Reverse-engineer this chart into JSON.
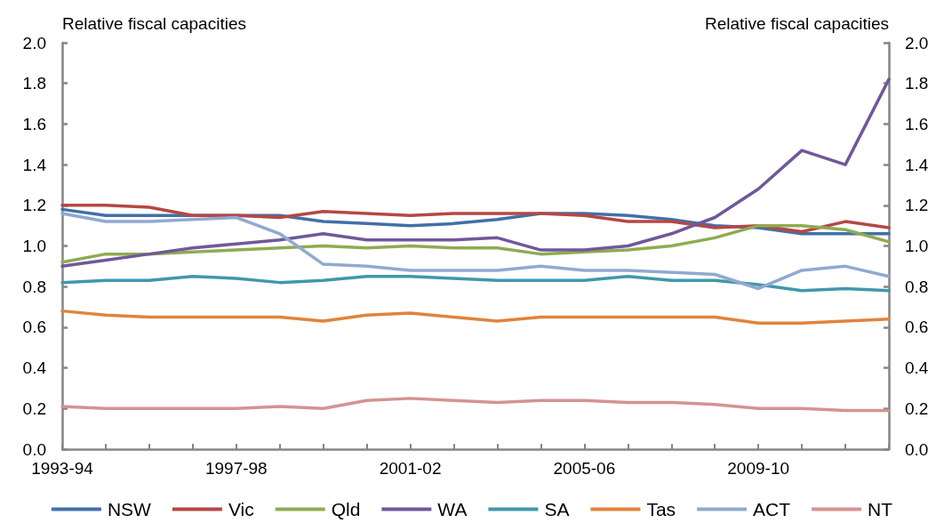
{
  "chart_data": {
    "type": "line",
    "ylabel": "Relative fiscal capacities",
    "y2label": "Relative fiscal capacities",
    "categories": [
      "1993-94",
      null,
      null,
      null,
      "1997-98",
      null,
      null,
      null,
      "2001-02",
      null,
      null,
      null,
      "2005-06",
      null,
      null,
      null,
      "2009-10",
      null,
      null,
      null
    ],
    "series": [
      {
        "name": "NSW",
        "color": "#4170a8",
        "values": [
          1.18,
          1.15,
          1.15,
          1.15,
          1.15,
          1.15,
          1.12,
          1.11,
          1.1,
          1.11,
          1.13,
          1.16,
          1.16,
          1.15,
          1.13,
          1.1,
          1.09,
          1.06,
          1.06,
          1.06
        ]
      },
      {
        "name": "Vic",
        "color": "#b54744",
        "values": [
          1.2,
          1.2,
          1.19,
          1.15,
          1.15,
          1.14,
          1.17,
          1.16,
          1.15,
          1.16,
          1.16,
          1.16,
          1.15,
          1.12,
          1.12,
          1.09,
          1.1,
          1.07,
          1.12,
          1.09
        ]
      },
      {
        "name": "Qld",
        "color": "#8fab52",
        "values": [
          0.92,
          0.96,
          0.96,
          0.97,
          0.98,
          0.99,
          1.0,
          0.99,
          1.0,
          0.99,
          0.99,
          0.96,
          0.97,
          0.98,
          1.0,
          1.04,
          1.1,
          1.1,
          1.08,
          1.02
        ]
      },
      {
        "name": "WA",
        "color": "#70589a",
        "values": [
          0.9,
          0.93,
          0.96,
          0.99,
          1.01,
          1.03,
          1.06,
          1.03,
          1.03,
          1.03,
          1.04,
          0.98,
          0.98,
          1.0,
          1.06,
          1.14,
          1.28,
          1.47,
          1.4,
          1.82
        ]
      },
      {
        "name": "SA",
        "color": "#3f98ac",
        "values": [
          0.82,
          0.83,
          0.83,
          0.85,
          0.84,
          0.82,
          0.83,
          0.85,
          0.85,
          0.84,
          0.83,
          0.83,
          0.83,
          0.85,
          0.83,
          0.83,
          0.81,
          0.78,
          0.79,
          0.78
        ]
      },
      {
        "name": "Tas",
        "color": "#e0843c",
        "values": [
          0.68,
          0.66,
          0.65,
          0.65,
          0.65,
          0.65,
          0.63,
          0.66,
          0.67,
          0.65,
          0.63,
          0.65,
          0.65,
          0.65,
          0.65,
          0.65,
          0.62,
          0.62,
          0.63,
          0.64
        ]
      },
      {
        "name": "ACT",
        "color": "#91a9d0",
        "values": [
          1.16,
          1.12,
          1.12,
          1.13,
          1.14,
          1.06,
          0.91,
          0.9,
          0.88,
          0.88,
          0.88,
          0.9,
          0.88,
          0.88,
          0.87,
          0.86,
          0.79,
          0.88,
          0.9,
          0.85
        ]
      },
      {
        "name": "NT",
        "color": "#d49391",
        "values": [
          0.21,
          0.2,
          0.2,
          0.2,
          0.2,
          0.21,
          0.2,
          0.24,
          0.25,
          0.24,
          0.23,
          0.24,
          0.24,
          0.23,
          0.23,
          0.22,
          0.2,
          0.2,
          0.19,
          0.19
        ]
      }
    ],
    "ylim": [
      0,
      2
    ],
    "yticks": [
      {
        "value": 0,
        "label": "0.0"
      },
      {
        "value": 0.2,
        "label": "0.2"
      },
      {
        "value": 0.4,
        "label": "0.4"
      },
      {
        "value": 0.6,
        "label": "0.6"
      },
      {
        "value": 0.8,
        "label": "0.8"
      },
      {
        "value": 1,
        "label": "1.0"
      },
      {
        "value": 1.2,
        "label": "1.2"
      },
      {
        "value": 1.4,
        "label": "1.4"
      },
      {
        "value": 1.6,
        "label": "1.6"
      },
      {
        "value": 1.8,
        "label": "1.8"
      },
      {
        "value": 2,
        "label": "2.0"
      }
    ],
    "y2lim": [
      0,
      2
    ],
    "y2ticks": [
      {
        "value": 0,
        "label": "0.0"
      },
      {
        "value": 0.2,
        "label": "0.2"
      },
      {
        "value": 0.4,
        "label": "0.4"
      },
      {
        "value": 0.6,
        "label": "0.6"
      },
      {
        "value": 0.8,
        "label": "0.8"
      },
      {
        "value": 1,
        "label": "1.0"
      },
      {
        "value": 1.2,
        "label": "1.2"
      },
      {
        "value": 1.4,
        "label": "1.4"
      },
      {
        "value": 1.6,
        "label": "1.6"
      },
      {
        "value": 1.8,
        "label": "1.8"
      },
      {
        "value": 2,
        "label": "2.0"
      }
    ],
    "grid": false,
    "legend": "bottom",
    "marker": "none",
    "line_style": "solid"
  }
}
